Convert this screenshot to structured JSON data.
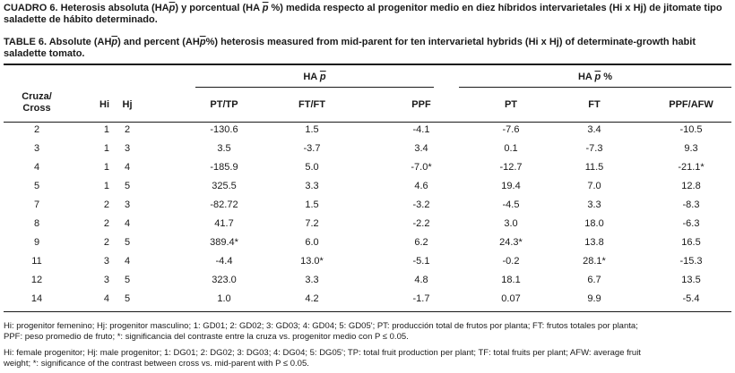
{
  "caption_es": {
    "label": "CUADRO 6.",
    "text_before_1": "Heterosis absoluta (HA",
    "p1": "p",
    "text_mid": ") y porcentual (HA ",
    "p2": "p",
    "text_after": " %) medida respecto al progenitor medio en diez híbridos intervarietales (Hi x Hj) de jitomate tipo saladette de hábito determinado."
  },
  "caption_en": {
    "label": "TABLE 6.",
    "text_before_1": "Absolute (AH",
    "p1": "p",
    "text_mid": ") and percent (AH",
    "p2": "p",
    "text_after": "%) heterosis measured from mid-parent for ten intervarietal hybrids (Hi x Hj) of determinate-growth habit saladette tomato."
  },
  "table": {
    "group1": {
      "prefix": "HA ",
      "p": "p",
      "suffix": ""
    },
    "group2": {
      "prefix": "HA ",
      "p": "p",
      "suffix": " %"
    },
    "col_cross": "Cruza/\nCross",
    "col_hi": "Hi",
    "col_hj": "Hj",
    "col_pt_tp": "PT/TP",
    "col_ft_ft": "FT/FT",
    "col_ppf": "PPF",
    "col_pt": "PT",
    "col_ft": "FT",
    "col_ppf_afw": "PPF/AFW",
    "rows": [
      [
        "2",
        "1",
        "2",
        "-130.6",
        "1.5",
        "-4.1",
        "-7.6",
        "3.4",
        "-10.5"
      ],
      [
        "3",
        "1",
        "3",
        "3.5",
        "-3.7",
        "3.4",
        "0.1",
        "-7.3",
        "9.3"
      ],
      [
        "4",
        "1",
        "4",
        "-185.9",
        "5.0",
        "-7.0*",
        "-12.7",
        "11.5",
        "-21.1*"
      ],
      [
        "5",
        "1",
        "5",
        "325.5",
        "3.3",
        "4.6",
        "19.4",
        "7.0",
        "12.8"
      ],
      [
        "7",
        "2",
        "3",
        "-82.72",
        "1.5",
        "-3.2",
        "-4.5",
        "3.3",
        "-8.3"
      ],
      [
        "8",
        "2",
        "4",
        "41.7",
        "7.2",
        "-2.2",
        "3.0",
        "18.0",
        "-6.3"
      ],
      [
        "9",
        "2",
        "5",
        "389.4*",
        "6.0",
        "6.2",
        "24.3*",
        "13.8",
        "16.5"
      ],
      [
        "11",
        "3",
        "4",
        "-4.4",
        "13.0*",
        "-5.1",
        "-0.2",
        "28.1*",
        "-15.3"
      ],
      [
        "12",
        "3",
        "5",
        "323.0",
        "3.3",
        "4.8",
        "18.1",
        "6.7",
        "13.5"
      ],
      [
        "14",
        "4",
        "5",
        "1.0",
        "4.2",
        "-1.7",
        "0.07",
        "9.9",
        "-5.4"
      ]
    ]
  },
  "notes": {
    "es_line1": "Hi: progenitor femenino; Hj: progenitor masculino; 1: GD01; 2: GD02; 3: GD03; 4: GD04; 5: GD05'; PT: producción total de frutos por planta; FT: frutos totales por planta;",
    "es_line2": "PPF: peso promedio de fruto; *: significancia del contraste entre la cruza vs. progenitor medio con P ≤ 0.05.",
    "en_line1": "Hi: female progenitor; Hj: male progenitor; 1: DG01; 2: DG02; 3: DG03; 4: DG04; 5: DG05'; TP: total fruit production per plant; TF: total fruits per plant; AFW: average fruit",
    "en_line2": "weight; *: significance of the contrast between cross vs. mid-parent with P ≤ 0.05."
  }
}
